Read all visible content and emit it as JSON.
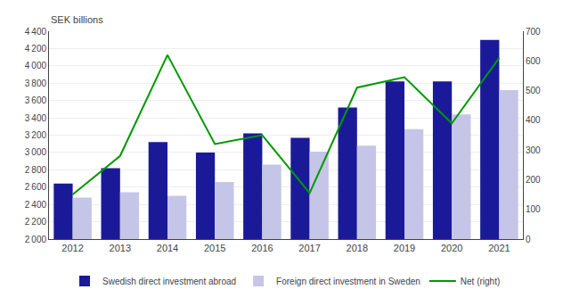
{
  "chart_data": {
    "type": "bar",
    "ylabel": "SEK billions",
    "categories": [
      "2012",
      "2013",
      "2014",
      "2015",
      "2016",
      "2017",
      "2018",
      "2019",
      "2020",
      "2021"
    ],
    "series": [
      {
        "name": "Swedish direct investment abroad",
        "type": "bar",
        "color": "#1a1a99",
        "values": [
          2640,
          2820,
          3120,
          3000,
          3220,
          3170,
          3520,
          3820,
          3820,
          4300
        ]
      },
      {
        "name": "Foreign direct investment in Sweden",
        "type": "bar",
        "color": "#c5c5e8",
        "values": [
          2480,
          2540,
          2500,
          2660,
          2860,
          3010,
          3080,
          3270,
          3440,
          3720
        ]
      },
      {
        "name": "Net (right)",
        "type": "line",
        "color": "#009900",
        "axis": "y2",
        "values": [
          150,
          280,
          620,
          320,
          350,
          155,
          510,
          545,
          390,
          610
        ]
      }
    ],
    "ylim": [
      2000,
      4400
    ],
    "yticks": [
      {
        "value": 2000,
        "label": "2 000"
      },
      {
        "value": 2200,
        "label": "2 200"
      },
      {
        "value": 2400,
        "label": "2 400"
      },
      {
        "value": 2600,
        "label": "2 600"
      },
      {
        "value": 2800,
        "label": "2 800"
      },
      {
        "value": 3000,
        "label": "3 000"
      },
      {
        "value": 3200,
        "label": "3 200"
      },
      {
        "value": 3400,
        "label": "3 400"
      },
      {
        "value": 3600,
        "label": "3 600"
      },
      {
        "value": 3800,
        "label": "3 800"
      },
      {
        "value": 4000,
        "label": "4 000"
      },
      {
        "value": 4200,
        "label": "4 200"
      },
      {
        "value": 4400,
        "label": "4 400"
      }
    ],
    "y2lim": [
      0,
      700
    ],
    "y2ticks": [
      0,
      100,
      200,
      300,
      400,
      500,
      600,
      700
    ],
    "grid": true,
    "legend": "bottom"
  }
}
